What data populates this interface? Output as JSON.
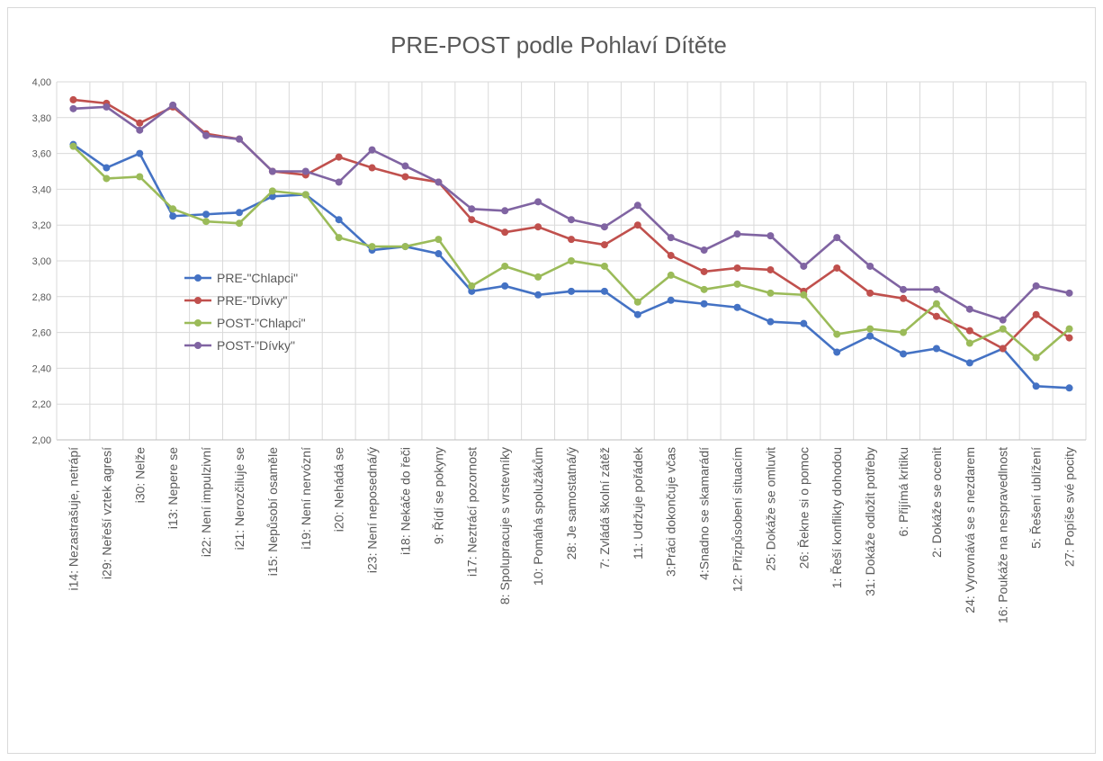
{
  "chart_data": {
    "type": "line",
    "title": "PRE-POST podle Pohlaví Dítěte",
    "xlabel": "",
    "ylabel": "",
    "ylim": [
      2.0,
      4.0
    ],
    "yticks": [
      "2,00",
      "2,20",
      "2,40",
      "2,60",
      "2,80",
      "3,00",
      "3,20",
      "3,40",
      "3,60",
      "3,80",
      "4,00"
    ],
    "grid": true,
    "legend_position": "left-center",
    "categories": [
      "i14: Nezastrašuje, netrápí",
      "i29: Neřeší vztek agresí",
      "i30: Nelže",
      "i13: Nepere se",
      "i22: Není impulzivní",
      "i21: Nerozčiluje se",
      "i15: Nepůsobí osaměle",
      "i19: Není nervózní",
      "i20: Nehádá se",
      "i23: Není neposedná/ý",
      "i18: Nekáče do řeči",
      "9: Řídí se pokyny",
      "i17: Neztrácí pozornost",
      "8: Spolupracuje s vrstevníky",
      "10: Pomáhá spolužákům",
      "28: Je samostatná/ý",
      "7: Zvládá školní zátěž",
      "11: Udržuje pořádek",
      "3:Práci dokončuje včas",
      "4:Snadno se skamarádí",
      "12: Přizpůsobení situacím",
      "25: Dokáže se omluvit",
      "26: Řekne si o pomoc",
      "1: Řeší konflikty dohodou",
      "31: Dokáže odložit potřeby",
      "6: Přijímá kritiku",
      "2: Dokáže se ocenit",
      "24: Vyrovnává se s nezdarem",
      "16: Poukáže na nespravedlnost",
      "5: Řešení ublížení",
      "27: Popíše své pocity"
    ],
    "series": [
      {
        "name": "PRE-\"Chlapci\"",
        "color": "#4472c4",
        "values": [
          3.65,
          3.52,
          3.6,
          3.25,
          3.26,
          3.27,
          3.36,
          3.37,
          3.23,
          3.06,
          3.08,
          3.04,
          2.83,
          2.86,
          2.81,
          2.83,
          2.83,
          2.7,
          2.78,
          2.76,
          2.74,
          2.66,
          2.65,
          2.49,
          2.58,
          2.48,
          2.51,
          2.43,
          2.51,
          2.3,
          2.29
        ]
      },
      {
        "name": "PRE-\"Dívky\"",
        "color": "#c0504d",
        "values": [
          3.9,
          3.88,
          3.77,
          3.86,
          3.71,
          3.68,
          3.5,
          3.48,
          3.58,
          3.52,
          3.47,
          3.44,
          3.23,
          3.16,
          3.19,
          3.12,
          3.09,
          3.2,
          3.03,
          2.94,
          2.96,
          2.95,
          2.83,
          2.96,
          2.82,
          2.79,
          2.69,
          2.61,
          2.51,
          2.7,
          2.57
        ]
      },
      {
        "name": "POST-\"Chlapci\"",
        "color": "#9bbb59",
        "values": [
          3.64,
          3.46,
          3.47,
          3.29,
          3.22,
          3.21,
          3.39,
          3.37,
          3.13,
          3.08,
          3.08,
          3.12,
          2.86,
          2.97,
          2.91,
          3.0,
          2.97,
          2.77,
          2.92,
          2.84,
          2.87,
          2.82,
          2.81,
          2.59,
          2.62,
          2.6,
          2.76,
          2.54,
          2.62,
          2.46,
          2.62
        ]
      },
      {
        "name": "POST-\"Dívky\"",
        "color": "#8064a2",
        "values": [
          3.85,
          3.86,
          3.73,
          3.87,
          3.7,
          3.68,
          3.5,
          3.5,
          3.44,
          3.62,
          3.53,
          3.44,
          3.29,
          3.28,
          3.33,
          3.23,
          3.19,
          3.31,
          3.13,
          3.06,
          3.15,
          3.14,
          2.97,
          3.13,
          2.97,
          2.84,
          2.84,
          2.73,
          2.67,
          2.86,
          2.82
        ]
      }
    ]
  }
}
